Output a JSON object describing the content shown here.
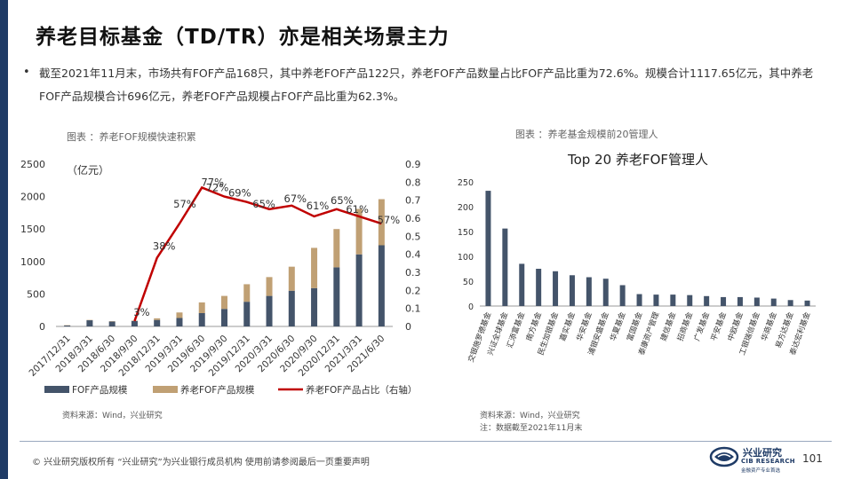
{
  "slide": {
    "title": "养老目标基金（TD/TR）亦是相关场景主力",
    "bullet": "截至2021年11月末，市场共有FOF产品168只，其中养老FOF产品122只，养老FOF产品数量占比FOF产品比重为72.6%。规模合计1117.65亿元，其中养老FOF产品规模合计696亿元，养老FOF产品规模占FOF产品比重为62.3%。",
    "page_number": "101"
  },
  "captions": {
    "left": "图表 ：养老FOF规模快速积累",
    "right": "图表 ：养老基金规模前20管理人"
  },
  "sources": {
    "left": "资料来源：Wind，兴业研究",
    "right_1": "资料来源：Wind，兴业研究",
    "right_2": "注：数据截至2021年11月末"
  },
  "footer": {
    "text": "©  兴业研究版权所有    “兴业研究”为兴业银行成员机构    使用前请参阅最后一页重要声明",
    "logo_cn": "兴业研究",
    "logo_en": "CIB RESEARCH",
    "logo_sub": "金融资产专业首选"
  },
  "colors": {
    "navy": "#44546a",
    "tan": "#c0a074",
    "red": "#c00000",
    "accent": "#1f3b66"
  },
  "chart_data": [
    {
      "type": "bar",
      "subtype": "stacked-bar-with-line",
      "unit_label": "（亿元）",
      "categories": [
        "2017/12/31",
        "2018/3/31",
        "2018/6/30",
        "2018/9/30",
        "2018/12/31",
        "2019/3/31",
        "2019/6/30",
        "2019/9/30",
        "2019/12/31",
        "2020/3/31",
        "2020/6/30",
        "2020/9/30",
        "2020/12/31",
        "2021/3/31",
        "2021/6/30"
      ],
      "ylim": [
        0,
        2500
      ],
      "yticks": [
        "0",
        "500",
        "1000",
        "1500",
        "2000",
        "2500"
      ],
      "y2lim": [
        0,
        0.9
      ],
      "y2ticks": [
        "0",
        "0.1",
        "0.2",
        "0.3",
        "0.4",
        "0.5",
        "0.6",
        "0.7",
        "0.8",
        "0.9"
      ],
      "series": [
        {
          "name": "FOF产品规模",
          "kind": "bar",
          "values": [
            15,
            95,
            75,
            85,
            100,
            130,
            205,
            270,
            380,
            470,
            550,
            590,
            910,
            1110,
            1250
          ]
        },
        {
          "name": "养老FOF产品规模",
          "kind": "bar",
          "values": [
            5,
            5,
            5,
            5,
            25,
            85,
            165,
            200,
            270,
            290,
            370,
            620,
            590,
            700,
            710
          ]
        },
        {
          "name": "养老FOF产品占比（右轴）",
          "kind": "line",
          "axis": "right",
          "values": [
            null,
            null,
            null,
            0.03,
            0.38,
            0.57,
            0.77,
            0.72,
            0.69,
            0.65,
            0.67,
            0.61,
            0.65,
            0.61,
            0.57
          ],
          "labels": [
            "",
            "",
            "",
            "3%",
            "38%",
            "57%",
            "77%",
            "72%",
            "69%",
            "65%",
            "67%",
            "61%",
            "65%",
            "61%",
            "57%"
          ]
        }
      ],
      "grid": false,
      "legend": "bottom"
    },
    {
      "type": "bar",
      "title": "Top 20 养老FOF管理人",
      "categories": [
        "交银施罗德基金",
        "兴证全球基金",
        "汇添富基金",
        "南方基金",
        "民生加银基金",
        "嘉实基金",
        "华安基金",
        "浦银安盛基金",
        "华夏基金",
        "富国基金",
        "泰康资产管理",
        "建信基金",
        "招商基金",
        "广发基金",
        "平安基金",
        "中欧基金",
        "工银瑞信基金",
        "华商基金",
        "易方达基金",
        "泰达宏利基金"
      ],
      "values": [
        232,
        156,
        85,
        75,
        70,
        62,
        58,
        55,
        42,
        24,
        23,
        23,
        22,
        20,
        18,
        18,
        17,
        15,
        12,
        11
      ],
      "ylim": [
        0,
        250
      ],
      "yticks": [
        "0",
        "50",
        "100",
        "150",
        "200",
        "250"
      ],
      "grid": false
    }
  ]
}
